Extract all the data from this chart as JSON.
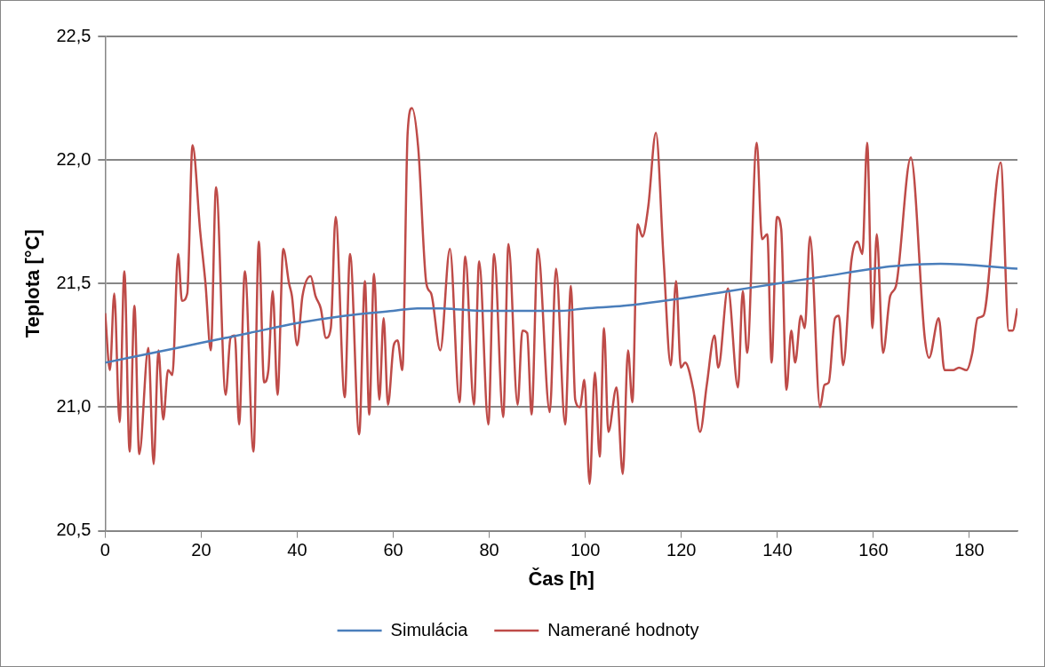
{
  "chart_data": {
    "type": "line",
    "xlabel": "Čas [h]",
    "ylabel": "Teplota [°C]",
    "xlim": [
      0,
      190
    ],
    "xticks": [
      0,
      20,
      40,
      60,
      80,
      100,
      120,
      140,
      160,
      180
    ],
    "ylim": [
      20.5,
      22.5
    ],
    "yticks": [
      {
        "value": 20.5,
        "label": "20,5"
      },
      {
        "value": 21.0,
        "label": "21,0"
      },
      {
        "value": 21.5,
        "label": "21,5"
      },
      {
        "value": 22.0,
        "label": "22,0"
      },
      {
        "value": 22.5,
        "label": "22,5"
      }
    ],
    "grid": "y",
    "legend": "bottom",
    "marker": "none",
    "line_style": "solid",
    "series": [
      {
        "name": "Simulácia",
        "color": "#4a7ebb",
        "x": [
          0,
          10,
          20,
          30,
          40,
          50,
          60,
          65,
          70,
          78,
          85,
          95,
          100,
          108,
          120,
          130,
          140,
          150,
          160,
          164,
          174,
          190
        ],
        "values": [
          21.18,
          21.22,
          21.26,
          21.3,
          21.34,
          21.37,
          21.39,
          21.4,
          21.4,
          21.39,
          21.39,
          21.39,
          21.4,
          21.41,
          21.44,
          21.47,
          21.5,
          21.53,
          21.56,
          21.57,
          21.58,
          21.56
        ]
      },
      {
        "name": "Namerané hodnoty",
        "color": "#be4b48",
        "x": [
          0,
          1.0,
          1.9,
          3.0,
          4.0,
          5.1,
          6.1,
          7.1,
          9.0,
          10.1,
          11.1,
          12.1,
          13.1,
          14.0,
          15.2,
          16.0,
          17.1,
          18.2,
          19.8,
          20.9,
          22.0,
          23.1,
          25.1,
          26.1,
          27.0,
          27.9,
          29.1,
          30.9,
          32.0,
          33.1,
          34.0,
          34.9,
          35.9,
          37.1,
          38.3,
          38.9,
          40.0,
          41.1,
          42.8,
          43.8,
          44.9,
          46.0,
          47.0,
          48.0,
          49.9,
          51.0,
          52.9,
          54.1,
          55.0,
          56.0,
          57.1,
          58.0,
          58.9,
          60.1,
          60.9,
          61.9,
          63.0,
          63.9,
          65.2,
          66.9,
          67.9,
          69.8,
          71.8,
          73.8,
          75.0,
          76.8,
          77.9,
          79.8,
          81.0,
          82.9,
          84.0,
          85.9,
          86.9,
          87.9,
          88.8,
          90.1,
          92.6,
          93.9,
          95.8,
          97.0,
          97.9,
          98.9,
          99.8,
          100.9,
          102.0,
          103.0,
          103.9,
          104.8,
          106.5,
          107.8,
          108.9,
          109.8,
          110.9,
          111.9,
          113.1,
          114.7,
          116.3,
          117.8,
          118.9,
          119.9,
          120.8,
          122.5,
          123.9,
          125.3,
          126.9,
          127.7,
          129.7,
          131.8,
          132.8,
          133.7,
          135.7,
          136.8,
          137.9,
          138.8,
          139.9,
          140.8,
          141.9,
          142.9,
          143.7,
          144.9,
          145.7,
          146.8,
          148.9,
          149.8,
          150.7,
          152.0,
          152.8,
          153.7,
          155.4,
          156.7,
          157.7,
          158.7,
          159.8,
          160.7,
          162.0,
          163.5,
          164.7,
          167.8,
          170.7,
          171.6,
          173.6,
          174.8,
          176.7,
          177.8,
          179.4,
          180.6,
          181.7,
          182.9,
          186.5,
          188.2,
          189.0,
          190
        ],
        "values": [
          21.38,
          21.15,
          21.46,
          20.94,
          21.55,
          20.82,
          21.41,
          20.81,
          21.24,
          20.77,
          21.23,
          20.95,
          21.15,
          21.13,
          21.62,
          21.43,
          21.46,
          22.06,
          21.71,
          21.5,
          21.23,
          21.89,
          21.05,
          21.28,
          21.29,
          20.93,
          21.55,
          20.82,
          21.67,
          21.1,
          21.15,
          21.47,
          21.05,
          21.64,
          21.5,
          21.45,
          21.25,
          21.45,
          21.53,
          21.45,
          21.4,
          21.28,
          21.32,
          21.77,
          21.04,
          21.62,
          20.89,
          21.51,
          20.97,
          21.54,
          21.03,
          21.36,
          21.01,
          21.25,
          21.27,
          21.15,
          22.11,
          22.21,
          22.05,
          21.5,
          21.46,
          21.23,
          21.64,
          21.02,
          21.61,
          21.01,
          21.59,
          20.93,
          21.62,
          20.96,
          21.66,
          21.01,
          21.31,
          21.3,
          20.97,
          21.64,
          20.98,
          21.56,
          20.93,
          21.49,
          21.03,
          21.0,
          21.11,
          20.69,
          21.14,
          20.8,
          21.32,
          20.9,
          21.08,
          20.73,
          21.23,
          21.02,
          21.74,
          21.69,
          21.81,
          22.11,
          21.6,
          21.17,
          21.51,
          21.16,
          21.18,
          21.07,
          20.9,
          21.09,
          21.29,
          21.16,
          21.48,
          21.08,
          21.47,
          21.22,
          22.07,
          21.68,
          21.7,
          21.18,
          21.77,
          21.72,
          21.07,
          21.31,
          21.18,
          21.37,
          21.32,
          21.69,
          21.0,
          21.09,
          21.1,
          21.36,
          21.37,
          21.17,
          21.59,
          21.67,
          21.62,
          22.07,
          21.32,
          21.7,
          21.22,
          21.45,
          21.49,
          22.01,
          21.28,
          21.2,
          21.36,
          21.15,
          21.15,
          21.16,
          21.15,
          21.22,
          21.36,
          21.37,
          21.99,
          21.31,
          21.31,
          21.4
        ]
      }
    ]
  }
}
